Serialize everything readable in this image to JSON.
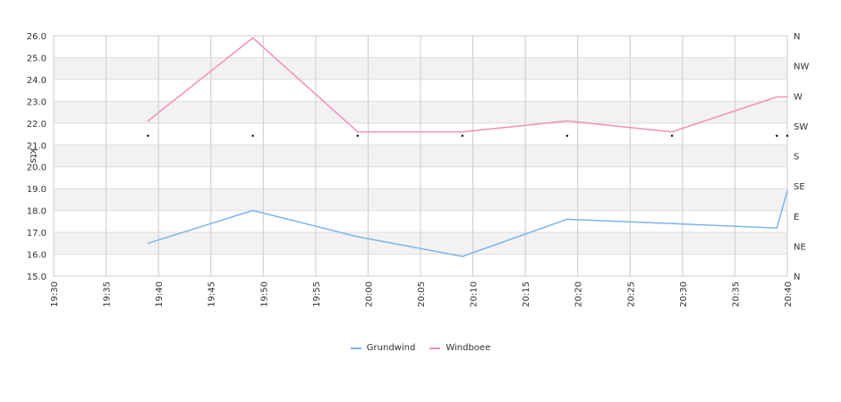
{
  "chart_data": {
    "type": "line",
    "ylabel": "kts",
    "ylim": [
      15,
      26
    ],
    "y_ticks": [
      "15.0",
      "16.0",
      "17.0",
      "18.0",
      "19.0",
      "20.0",
      "21.0",
      "22.0",
      "23.0",
      "24.0",
      "25.0",
      "26.0"
    ],
    "x_ticks": [
      "19:30",
      "19:35",
      "19:40",
      "19:45",
      "19:50",
      "19:55",
      "20:00",
      "20:05",
      "20:10",
      "20:15",
      "20:20",
      "20:25",
      "20:30",
      "20:35",
      "20:40"
    ],
    "xlim": [
      "19:30",
      "20:40"
    ],
    "right_axis_ticks": [
      "N",
      "NE",
      "E",
      "SE",
      "S",
      "SW",
      "W",
      "NW",
      "N"
    ],
    "grid": true,
    "legend_position": "bottom",
    "series": [
      {
        "name": "Grundwind",
        "color": "#7cb5ec",
        "x": [
          "19:39",
          "19:49",
          "19:59",
          "20:09",
          "20:19",
          "20:29",
          "20:39",
          "20:40"
        ],
        "values": [
          16.5,
          18.0,
          16.8,
          15.9,
          17.6,
          17.4,
          17.2,
          18.9
        ]
      },
      {
        "name": "Windboee",
        "color": "#f28fbd",
        "x": [
          "19:39",
          "19:49",
          "19:59",
          "20:09",
          "20:19",
          "20:29",
          "20:39",
          "20:40"
        ],
        "values": [
          22.1,
          25.9,
          21.6,
          21.6,
          22.1,
          21.6,
          23.2,
          23.2
        ]
      }
    ],
    "direction_marker_times": [
      "19:39",
      "19:49",
      "19:59",
      "20:09",
      "20:19",
      "20:29",
      "20:39",
      "20:40"
    ]
  }
}
